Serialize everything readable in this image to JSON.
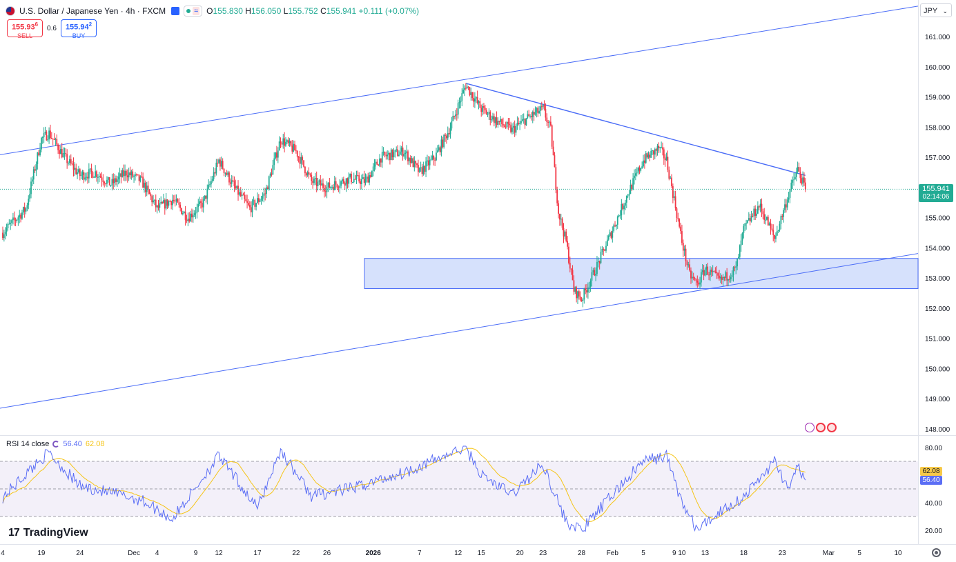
{
  "header": {
    "symbol": "U.S. Dollar / Japanese Yen · 4h · FXCM",
    "open_label": "O",
    "open": "155.830",
    "high_label": "H",
    "high": "156.050",
    "low_label": "L",
    "low": "155.752",
    "close_label": "C",
    "close": "155.941",
    "change": "+0.111 (+0.07%)"
  },
  "trade": {
    "sell_price": "155.93",
    "sell_price_sup": "6",
    "sell_label": "SELL",
    "spread": "0.6",
    "buy_price": "155.94",
    "buy_price_sup": "2",
    "buy_label": "BUY"
  },
  "currency": "JPY",
  "last_price": {
    "value": "155.941",
    "countdown": "02:14:06"
  },
  "rsi_legend": {
    "name": "RSI 14 close",
    "rsi": "56.40",
    "ma": "62.08"
  },
  "brand": "TradingView",
  "colors": {
    "up": "#22ab94",
    "down": "#f23645",
    "trendline": "#4a6cf7",
    "zone": "#cfdcfb",
    "rsi": "#5b6ef5",
    "rsi_ma": "#f5c518"
  },
  "icons": [
    "flag-usd-jpy-icon",
    "visibility-icon",
    "status-dot-icon",
    "wave-icon",
    "flash-icon",
    "flag-icon",
    "settings-gear-icon"
  ],
  "chart_data": {
    "type": "candlestick",
    "title": "U.S. Dollar / Japanese Yen · 4h · FXCM",
    "price_axis": {
      "ticks": [
        "161.000",
        "160.000",
        "159.000",
        "158.000",
        "157.000",
        "156.000",
        "155.000",
        "154.000",
        "153.000",
        "152.000",
        "151.000",
        "150.000",
        "149.000",
        "148.000"
      ]
    },
    "time_axis": {
      "ticks": [
        "4",
        "19",
        "24",
        "Dec",
        "4",
        "9",
        "12",
        "17",
        "22",
        "26",
        "2026",
        "7",
        "12",
        "15",
        "20",
        "23",
        "28",
        "Feb",
        "5",
        "9",
        "10",
        "13",
        "18",
        "23",
        "Mar",
        "5",
        "10"
      ]
    },
    "price_path": [
      [
        "Nov 14",
        154.5
      ],
      [
        "Nov 17",
        155.3
      ],
      [
        "Nov 19",
        157.6
      ],
      [
        "Nov 20",
        157.8
      ],
      [
        "Nov 22",
        157.0
      ],
      [
        "Nov 24",
        156.4
      ],
      [
        "Nov 26",
        156.5
      ],
      [
        "Nov 28",
        156.1
      ],
      [
        "Nov 30",
        156.5
      ],
      [
        "Dec 2",
        156.2
      ],
      [
        "Dec 4",
        155.3
      ],
      [
        "Dec 6",
        155.6
      ],
      [
        "Dec 8",
        155.0
      ],
      [
        "Dec 10",
        155.5
      ],
      [
        "Dec 12",
        156.9
      ],
      [
        "Dec 14",
        156.0
      ],
      [
        "Dec 16",
        155.3
      ],
      [
        "Dec 18",
        155.8
      ],
      [
        "Dec 20",
        157.6
      ],
      [
        "Dec 22",
        157.2
      ],
      [
        "Dec 24",
        156.2
      ],
      [
        "Dec 26",
        156.0
      ],
      [
        "Dec 29",
        156.3
      ],
      [
        "Dec 31",
        156.2
      ],
      [
        "Jan 2",
        157.0
      ],
      [
        "Jan 5",
        157.2
      ],
      [
        "Jan 7",
        156.5
      ],
      [
        "Jan 9",
        157.0
      ],
      [
        "Jan 11",
        158.0
      ],
      [
        "Jan 13",
        159.4
      ],
      [
        "Jan 15",
        158.6
      ],
      [
        "Jan 17",
        158.2
      ],
      [
        "Jan 19",
        157.9
      ],
      [
        "Jan 21",
        158.3
      ],
      [
        "Jan 23",
        158.6
      ],
      [
        "Jan 24",
        157.9
      ],
      [
        "Jan 25",
        155.2
      ],
      [
        "Jan 26",
        154.2
      ],
      [
        "Jan 27",
        152.6
      ],
      [
        "Jan 28",
        152.3
      ],
      [
        "Jan 30",
        153.4
      ],
      [
        "Feb 1",
        154.6
      ],
      [
        "Feb 3",
        155.8
      ],
      [
        "Feb 5",
        156.9
      ],
      [
        "Feb 7",
        157.3
      ],
      [
        "Feb 8",
        156.9
      ],
      [
        "Feb 9",
        155.6
      ],
      [
        "Feb 10",
        154.2
      ],
      [
        "Feb 11",
        153.1
      ],
      [
        "Feb 12",
        152.8
      ],
      [
        "Feb 13",
        153.3
      ],
      [
        "Feb 15",
        152.9
      ],
      [
        "Feb 17",
        153.3
      ],
      [
        "Feb 18",
        154.6
      ],
      [
        "Feb 20",
        155.4
      ],
      [
        "Feb 21",
        154.9
      ],
      [
        "Feb 22",
        154.3
      ],
      [
        "Feb 24",
        155.9
      ],
      [
        "Feb 25",
        156.6
      ],
      [
        "Feb 26",
        155.94
      ]
    ],
    "annotations": {
      "upper_channel": [
        [
          "Nov 14",
          157.1
        ],
        [
          "Mar 10",
          161.9
        ]
      ],
      "lower_channel": [
        [
          "Nov 14",
          148.7
        ],
        [
          "Mar 10",
          153.7
        ]
      ],
      "descending_trendline": [
        [
          "Jan 13",
          159.45
        ],
        [
          "Feb 26",
          156.4
        ]
      ],
      "support_zone": {
        "from": "Jan 5",
        "to": "Mar 10",
        "low": 152.65,
        "high": 153.65
      }
    },
    "rsi": {
      "length": 14,
      "source": "close",
      "levels": [
        70,
        50,
        30
      ],
      "ticks": [
        "80.00",
        "40.00",
        "20.00"
      ],
      "rsi_last": 56.4,
      "ma_last": 62.08,
      "path": [
        [
          "Nov 14",
          44
        ],
        [
          "Nov 19",
          72
        ],
        [
          "Nov 20",
          76
        ],
        [
          "Nov 24",
          52
        ],
        [
          "Dec 2",
          42
        ],
        [
          "Dec 6",
          28
        ],
        [
          "Dec 12",
          74
        ],
        [
          "Dec 17",
          36
        ],
        [
          "Dec 20",
          78
        ],
        [
          "Dec 24",
          45
        ],
        [
          "Dec 29",
          50
        ],
        [
          "Jan 5",
          62
        ],
        [
          "Jan 13",
          80
        ],
        [
          "Jan 15",
          60
        ],
        [
          "Jan 19",
          46
        ],
        [
          "Jan 23",
          68
        ],
        [
          "Jan 26",
          26
        ],
        [
          "Jan 28",
          20
        ],
        [
          "Feb 1",
          46
        ],
        [
          "Feb 5",
          70
        ],
        [
          "Feb 8",
          74
        ],
        [
          "Feb 10",
          40
        ],
        [
          "Feb 12",
          20
        ],
        [
          "Feb 15",
          34
        ],
        [
          "Feb 18",
          44
        ],
        [
          "Feb 22",
          70
        ],
        [
          "Feb 24",
          48
        ],
        [
          "Feb 25",
          68
        ],
        [
          "Feb 26",
          56.4
        ]
      ]
    }
  }
}
